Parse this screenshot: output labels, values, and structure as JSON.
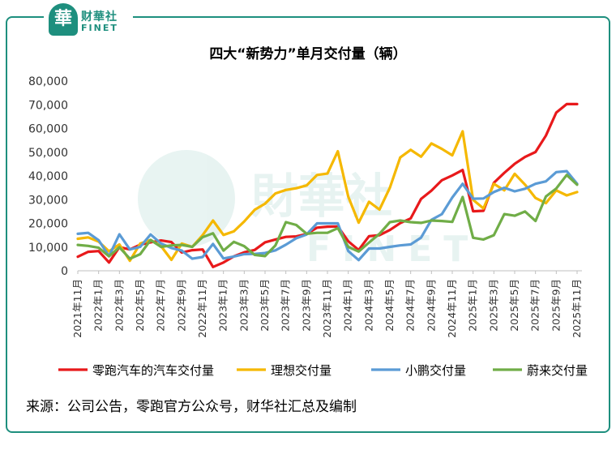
{
  "logo": {
    "mark": "華",
    "name": "财華社",
    "sub": "FINET"
  },
  "watermark": "財華社 FINET",
  "source": "来源：公司公告，零跑官方公众号，财华社汇总及编制",
  "chart_data": {
    "type": "line",
    "title": "四大“新势力”单月交付量（辆）",
    "xlabel": "",
    "ylabel": "",
    "ylim": [
      0,
      80000
    ],
    "yticks": [
      0,
      10000,
      20000,
      30000,
      40000,
      50000,
      60000,
      70000,
      80000
    ],
    "ytick_labels": [
      "0",
      "10,000",
      "20,000",
      "30,000",
      "40,000",
      "50,000",
      "60,000",
      "70,000",
      "80,000"
    ],
    "grid": false,
    "legend_position": "bottom",
    "x": [
      "2021年11月",
      "2021年12月",
      "2022年1月",
      "2022年2月",
      "2022年3月",
      "2022年4月",
      "2022年5月",
      "2022年6月",
      "2022年7月",
      "2022年8月",
      "2022年9月",
      "2022年10月",
      "2022年11月",
      "2022年12月",
      "2023年1月",
      "2023年2月",
      "2023年3月",
      "2023年4月",
      "2023年5月",
      "2023年6月",
      "2023年7月",
      "2023年8月",
      "2023年9月",
      "2023年10月",
      "2023年11月",
      "2023年12月",
      "2024年1月",
      "2024年2月",
      "2024年3月",
      "2024年4月",
      "2024年5月",
      "2024年6月",
      "2024年7月",
      "2024年8月",
      "2024年9月",
      "2024年10月",
      "2024年11月",
      "2024年12月",
      "2025年1月",
      "2025年2月",
      "2025年3月",
      "2025年4月",
      "2025年5月",
      "2025年6月",
      "2025年7月",
      "2025年8月",
      "2025年9月",
      "2025年10月",
      "2025年11月"
    ],
    "x_tick_labels": [
      "2021年11月",
      "2022年1月",
      "2022年3月",
      "2022年5月",
      "2022年7月",
      "2022年9月",
      "2022年11月",
      "2023年1月",
      "2023年3月",
      "2023年5月",
      "2023年7月",
      "2023年9月",
      "2023年11月",
      "2024年1月",
      "2024年3月",
      "2024年5月",
      "2024年7月",
      "2024年9月",
      "2024年11月",
      "2025年1月",
      "2025年3月",
      "2025年5月",
      "2025年7月",
      "2025年9月",
      "2025年11月"
    ],
    "series": [
      {
        "name": "零跑汽车的汽车交付量",
        "color": "#e8191b",
        "values": [
          5900,
          8000,
          8300,
          3500,
          10000,
          9000,
          11000,
          12000,
          12800,
          12100,
          7700,
          8700,
          9000,
          1600,
          3500,
          6100,
          7800,
          8800,
          12000,
          13200,
          14300,
          14500,
          15500,
          18200,
          18600,
          18700,
          12400,
          8800,
          14600,
          15000,
          17200,
          20100,
          22100,
          30300,
          33800,
          38200,
          40200,
          42500,
          25100,
          25300,
          37100,
          41300,
          45100,
          48000,
          50100,
          57000,
          66700,
          70300,
          70300
        ]
      },
      {
        "name": "理想交付量",
        "color": "#f5b800",
        "values": [
          13500,
          14100,
          12300,
          8200,
          11100,
          4200,
          11500,
          13000,
          10400,
          4600,
          11500,
          10100,
          15000,
          21200,
          15100,
          16600,
          20800,
          25700,
          28300,
          32600,
          34100,
          34800,
          36000,
          40400,
          41000,
          50400,
          31200,
          20300,
          29100,
          25800,
          35000,
          47800,
          51000,
          48100,
          53700,
          51400,
          48700,
          58800,
          29900,
          26300,
          36700,
          33900,
          40900,
          36300,
          30700,
          28500,
          33900,
          31800,
          33200
        ]
      },
      {
        "name": "小鹏交付量",
        "color": "#5b9bd5",
        "values": [
          15600,
          16000,
          12900,
          6200,
          15400,
          9000,
          10100,
          15300,
          11500,
          9600,
          8500,
          5100,
          5800,
          11300,
          5200,
          6000,
          7000,
          7100,
          7500,
          8600,
          11000,
          13700,
          15300,
          20000,
          20000,
          20000,
          8300,
          4500,
          9400,
          9400,
          10100,
          10700,
          11100,
          14000,
          21500,
          23900,
          30900,
          36700,
          30400,
          30500,
          33200,
          35000,
          33500,
          34600,
          36700,
          37700,
          41600,
          42000,
          36700
        ]
      },
      {
        "name": "蔚来交付量",
        "color": "#70ad47",
        "values": [
          10900,
          10500,
          9700,
          6100,
          9900,
          5100,
          7000,
          13000,
          10100,
          10700,
          10900,
          10100,
          14200,
          15800,
          8500,
          12200,
          10400,
          6700,
          6200,
          10700,
          20500,
          19300,
          15600,
          16000,
          16000,
          18000,
          10100,
          8100,
          11900,
          15600,
          20500,
          21200,
          20500,
          20200,
          21200,
          21000,
          20600,
          31100,
          13900,
          13200,
          15000,
          23900,
          23200,
          25000,
          21000,
          31300,
          34700,
          40400,
          36300
        ]
      }
    ]
  }
}
